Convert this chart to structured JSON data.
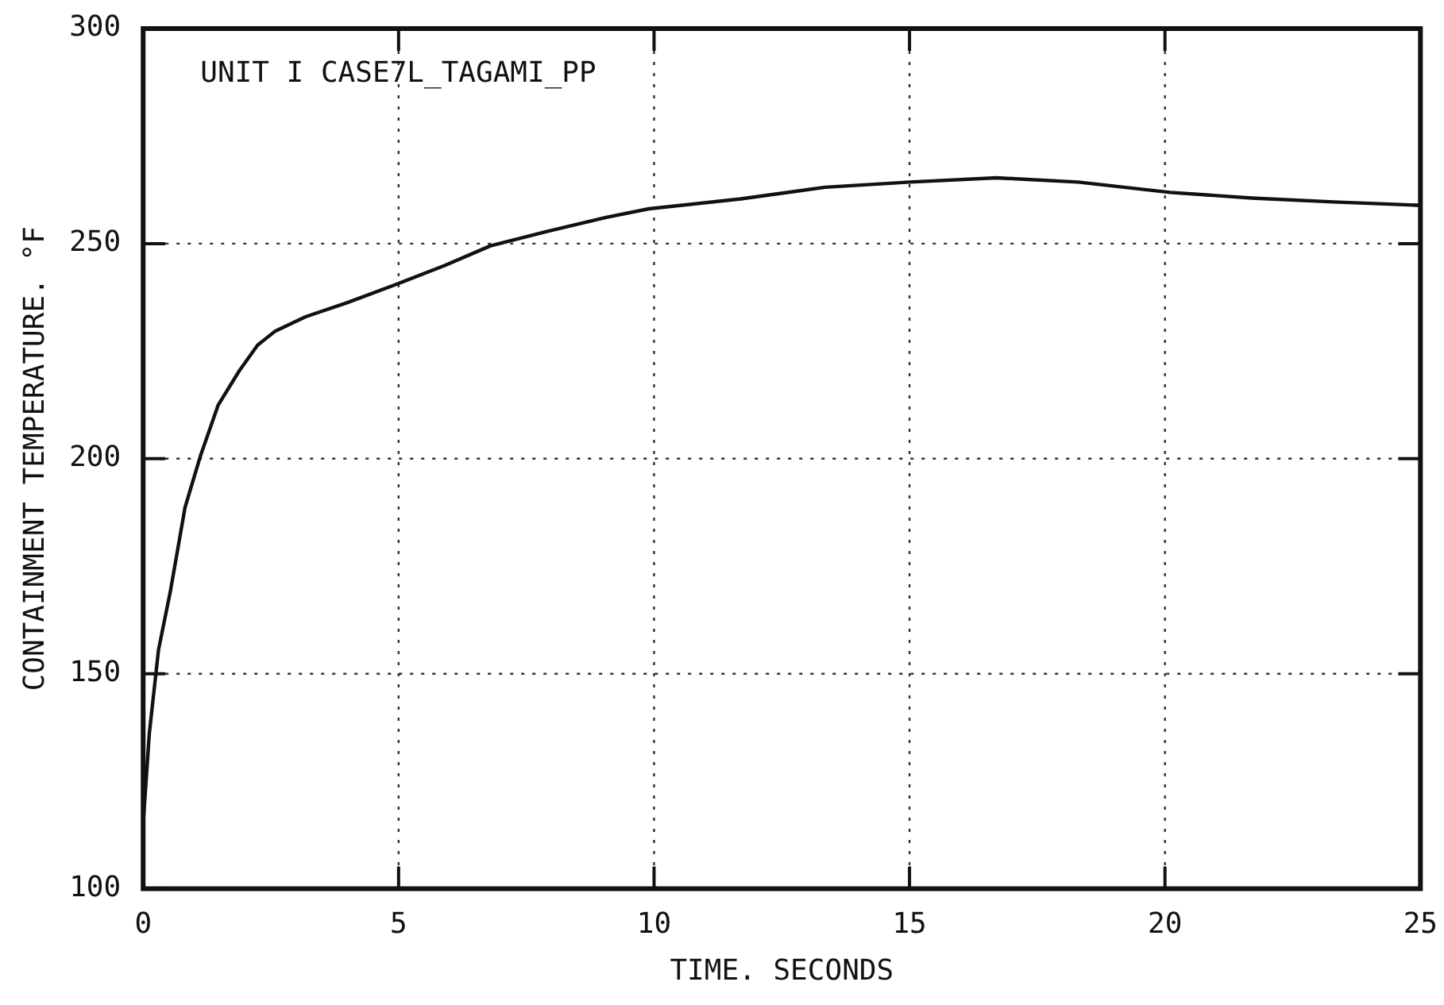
{
  "chart_data": {
    "type": "line",
    "xlabel": "TIME. SECONDS",
    "ylabel": "CONTAINMENT TEMPERATURE. °F",
    "annotations": [
      "UNIT I CASE7L_TAGAMI_PP"
    ],
    "xlim": [
      0,
      25
    ],
    "xticks": [
      0,
      5,
      10,
      15,
      20,
      25
    ],
    "ylim": [
      100,
      300
    ],
    "yticks": [
      100,
      150,
      200,
      250,
      300
    ],
    "grid": true,
    "line_style": "solid",
    "marker": "none",
    "legend": false,
    "series": [
      {
        "color": "#111111",
        "x": [
          0,
          0.12,
          0.3,
          0.53,
          0.82,
          1.12,
          1.47,
          1.88,
          2.24,
          2.59,
          3.18,
          4,
          4.9,
          5.9,
          6.8,
          7.9,
          9.06,
          9.9,
          11.7,
          13.35,
          15,
          16.7,
          18.3,
          20.1,
          21.7,
          23.3,
          25
        ],
        "values": [
          115,
          136,
          155.5,
          169,
          188.7,
          200.6,
          212.5,
          220.4,
          226.4,
          229.7,
          233,
          236.3,
          240.3,
          244.9,
          249.5,
          252.8,
          256.1,
          258.1,
          260.4,
          263.1,
          264.3,
          265.3,
          264.3,
          261.9,
          260.6,
          259.7,
          258.9
        ]
      }
    ]
  }
}
